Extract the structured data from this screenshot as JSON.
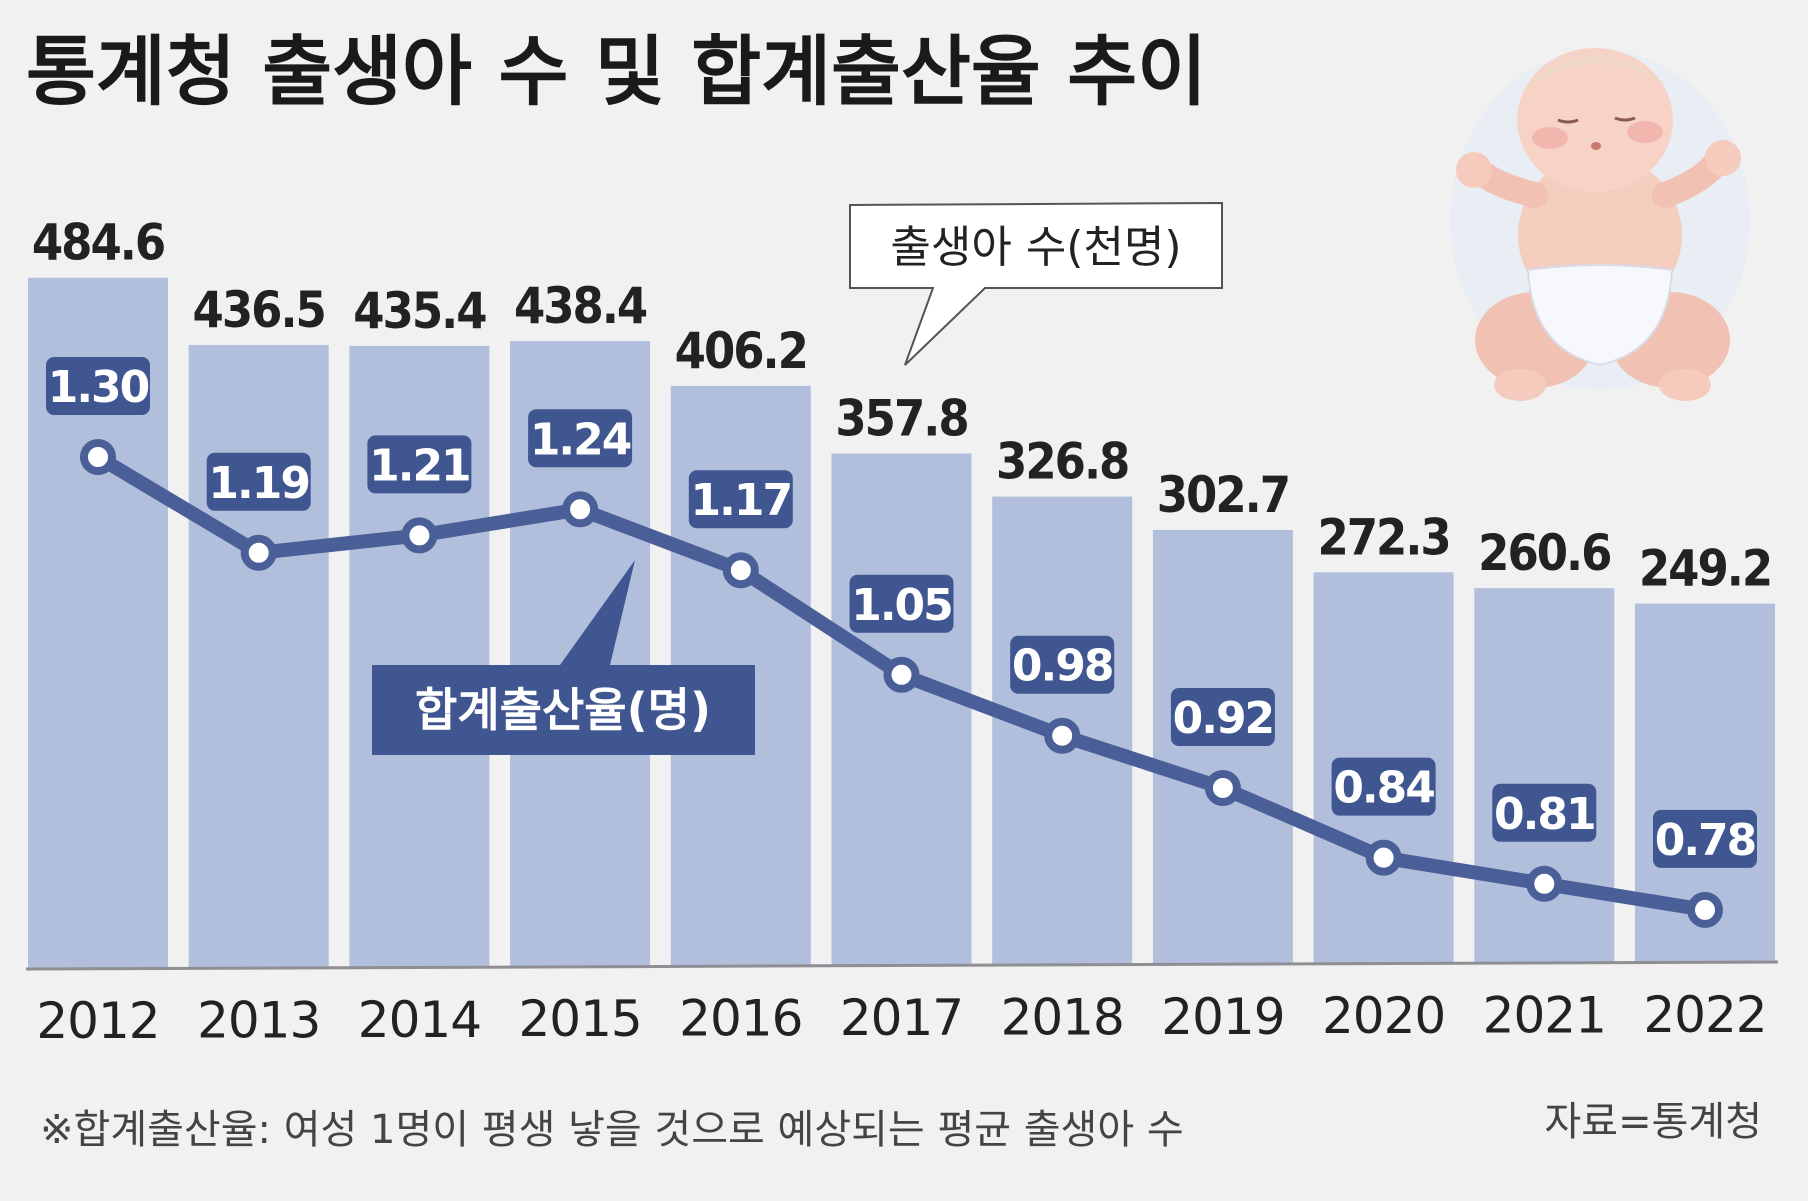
{
  "title": "통계청 출생아 수 및 합계출산율 추이",
  "chart_data": {
    "type": "bar",
    "title": "통계청 출생아 수 및 합계출산율 추이",
    "categories": [
      "2012",
      "2013",
      "2014",
      "2015",
      "2016",
      "2017",
      "2018",
      "2019",
      "2020",
      "2021",
      "2022"
    ],
    "series": [
      {
        "name": "출생아 수(천명)",
        "type": "bar",
        "values": [
          484.6,
          436.5,
          435.4,
          438.4,
          406.2,
          357.8,
          326.8,
          302.7,
          272.3,
          260.6,
          249.2
        ],
        "labels": [
          "484.6",
          "436.5",
          "435.4",
          "438.4",
          "406.2",
          "357.8",
          "326.8",
          "302.7",
          "272.3",
          "260.6",
          "249.2"
        ]
      },
      {
        "name": "합계출산율(명)",
        "type": "line",
        "values": [
          1.3,
          1.19,
          1.21,
          1.24,
          1.17,
          1.05,
          0.98,
          0.92,
          0.84,
          0.81,
          0.78
        ],
        "labels": [
          "1.30",
          "1.19",
          "1.21",
          "1.24",
          "1.17",
          "1.05",
          "0.98",
          "0.92",
          "0.84",
          "0.81",
          "0.78"
        ]
      }
    ],
    "bar_ylim": [
      0,
      520
    ],
    "line_ylim": [
      0.25,
      1.5
    ],
    "colors": {
      "bar": "#b2bfdc",
      "line": "#4a5f97",
      "label_box": "#3f5690",
      "background": "#f1f1f1"
    },
    "legend_bar": "출생아 수(천명)",
    "legend_line": "합계출산율(명)"
  },
  "footnote": "※합계출산율: 여성 1명이 평생 낳을 것으로 예상되는 평균 출생아 수",
  "source": "자료=통계청",
  "illustration": "baby-illustration"
}
